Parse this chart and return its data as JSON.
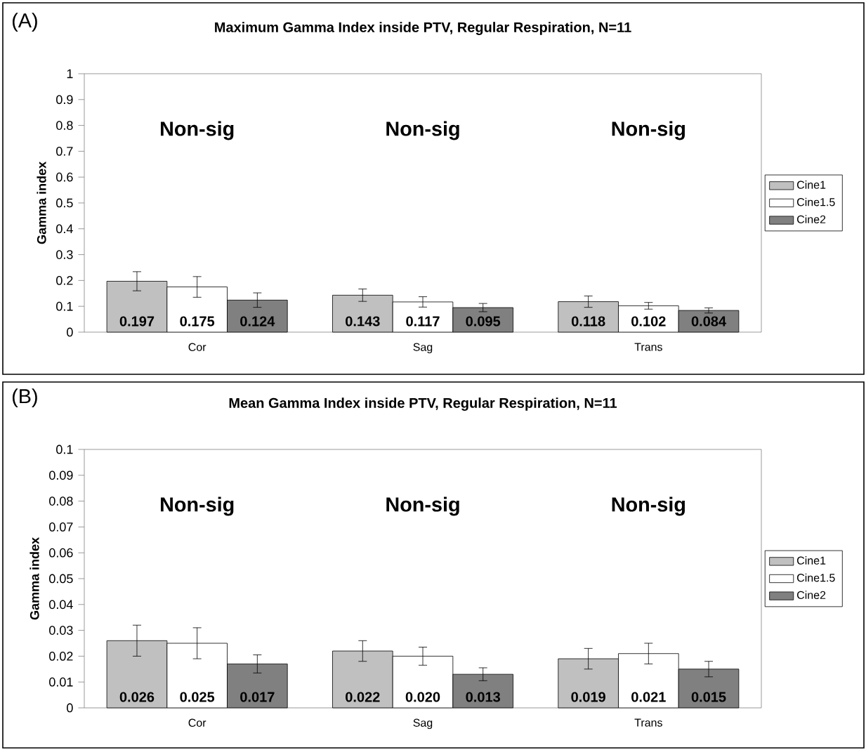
{
  "chart_data": [
    {
      "type": "bar",
      "title": "Maximum Gamma Index inside PTV, Regular Respiration, N=11",
      "ylabel": "Gamma index",
      "categories": [
        "Cor",
        "Sag",
        "Trans"
      ],
      "series": [
        {
          "name": "Cine1",
          "color": "#c0c0c0",
          "values": [
            0.197,
            0.143,
            0.118
          ],
          "errors": [
            0.037,
            0.024,
            0.022
          ],
          "value_labels": [
            "0.197",
            "0.143",
            "0.118"
          ]
        },
        {
          "name": "Cine1.5",
          "color": "#ffffff",
          "values": [
            0.175,
            0.117,
            0.102
          ],
          "errors": [
            0.04,
            0.02,
            0.013
          ],
          "value_labels": [
            "0.175",
            "0.117",
            "0.102"
          ]
        },
        {
          "name": "Cine2",
          "color": "#808080",
          "values": [
            0.124,
            0.095,
            0.084
          ],
          "errors": [
            0.028,
            0.016,
            0.01
          ],
          "value_labels": [
            "0.124",
            "0.095",
            "0.084"
          ]
        }
      ],
      "ylim": [
        0,
        1
      ],
      "yticks": [
        0,
        0.1,
        0.2,
        0.3,
        0.4,
        0.5,
        0.6,
        0.7,
        0.8,
        0.9,
        1
      ],
      "legend": "right",
      "grid": false,
      "annotations": [
        "(A)",
        "Non-sig",
        "Non-sig",
        "Non-sig"
      ]
    },
    {
      "type": "bar",
      "title": "Mean Gamma Index inside PTV, Regular Respiration, N=11",
      "ylabel": "Gamma index",
      "categories": [
        "Cor",
        "Sag",
        "Trans"
      ],
      "series": [
        {
          "name": "Cine1",
          "color": "#c0c0c0",
          "values": [
            0.026,
            0.022,
            0.019
          ],
          "errors": [
            0.006,
            0.004,
            0.004
          ],
          "value_labels": [
            "0.026",
            "0.022",
            "0.019"
          ]
        },
        {
          "name": "Cine1.5",
          "color": "#ffffff",
          "values": [
            0.025,
            0.02,
            0.021
          ],
          "errors": [
            0.006,
            0.0035,
            0.004
          ],
          "value_labels": [
            "0.025",
            "0.020",
            "0.021"
          ]
        },
        {
          "name": "Cine2",
          "color": "#808080",
          "values": [
            0.017,
            0.013,
            0.015
          ],
          "errors": [
            0.0035,
            0.0025,
            0.003
          ],
          "value_labels": [
            "0.017",
            "0.013",
            "0.015"
          ]
        }
      ],
      "ylim": [
        0,
        0.1
      ],
      "yticks": [
        0,
        0.01,
        0.02,
        0.03,
        0.04,
        0.05,
        0.06,
        0.07,
        0.08,
        0.09,
        0.1
      ],
      "legend": "right",
      "grid": false,
      "annotations": [
        "(B)",
        "Non-sig",
        "Non-sig",
        "Non-sig"
      ]
    }
  ]
}
